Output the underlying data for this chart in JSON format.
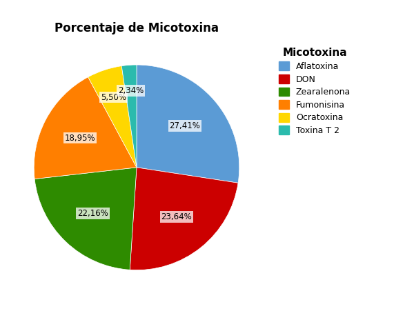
{
  "title": "Porcentaje de Micotoxina",
  "legend_title": "Micotoxina",
  "labels": [
    "Aflatoxina",
    "DON",
    "Zearalenona",
    "Fumonisina",
    "Ocratoxina",
    "Toxina T 2"
  ],
  "values": [
    27.41,
    23.64,
    22.16,
    18.95,
    5.5,
    2.34
  ],
  "colors": [
    "#5B9BD5",
    "#CC0000",
    "#2E8B00",
    "#FF7F00",
    "#FFD700",
    "#2BBBAD"
  ],
  "pct_labels": [
    "27,41%",
    "23,64%",
    "22,16%",
    "18,95%",
    "5,50%",
    "2,34%"
  ],
  "startangle": 90,
  "title_fontsize": 12,
  "label_fontsize": 8.5,
  "legend_fontsize": 9,
  "legend_title_fontsize": 11,
  "bg_color": "#FFFFFF"
}
